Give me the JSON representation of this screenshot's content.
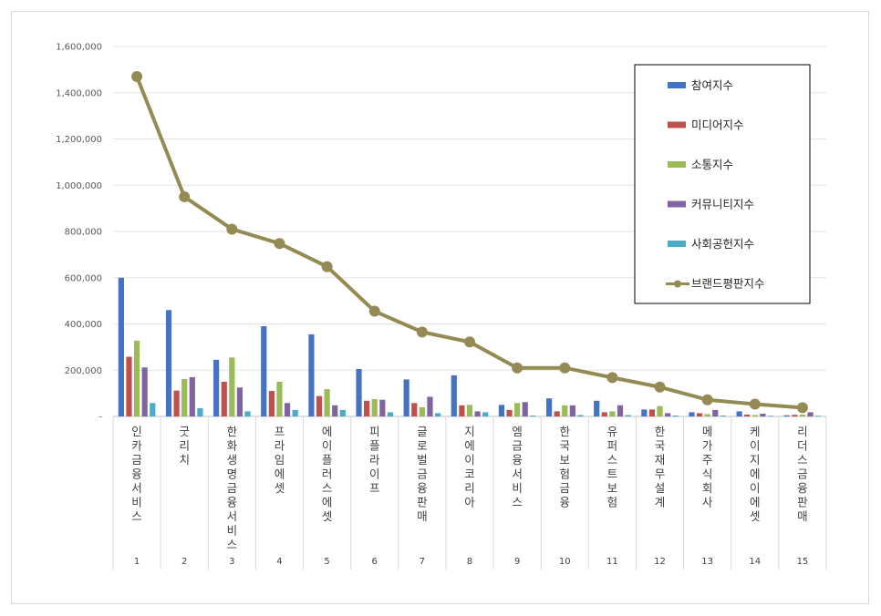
{
  "chart_data": {
    "type": "bar",
    "title": "",
    "xlabel": "",
    "ylabel": "",
    "ylim": [
      0,
      1600000
    ],
    "yticks": [
      "-",
      "200,000",
      "400,000",
      "600,000",
      "800,000",
      "1,000,000",
      "1,200,000",
      "1,400,000",
      "1,600,000"
    ],
    "grid": true,
    "legend_position": "top-right",
    "categories": [
      {
        "num": "1",
        "name": "인카금융서비스"
      },
      {
        "num": "2",
        "name": "굿리치"
      },
      {
        "num": "3",
        "name": "한화생명금융서비스"
      },
      {
        "num": "4",
        "name": "프라임에셋"
      },
      {
        "num": "5",
        "name": "에이플러스에셋"
      },
      {
        "num": "6",
        "name": "피플라이프"
      },
      {
        "num": "7",
        "name": "글로벌금융판매"
      },
      {
        "num": "8",
        "name": "지에이코리아"
      },
      {
        "num": "9",
        "name": "엠금융서비스"
      },
      {
        "num": "10",
        "name": "한국보험금융"
      },
      {
        "num": "11",
        "name": "유퍼스트보험"
      },
      {
        "num": "12",
        "name": "한국재무설계"
      },
      {
        "num": "13",
        "name": "메가주식회사"
      },
      {
        "num": "14",
        "name": "케이지에이에셋"
      },
      {
        "num": "15",
        "name": "리더스금융판매"
      }
    ],
    "series": [
      {
        "name": "참여지수",
        "kind": "bar",
        "color": "#4472c4",
        "values": [
          600000,
          460000,
          245000,
          390000,
          355000,
          205000,
          160000,
          178000,
          50000,
          78000,
          68000,
          30000,
          18000,
          22000,
          5000
        ]
      },
      {
        "name": "미디어지수",
        "kind": "bar",
        "color": "#c0504d",
        "values": [
          258000,
          112000,
          150000,
          110000,
          88000,
          68000,
          58000,
          48000,
          28000,
          22000,
          18000,
          30000,
          14000,
          8000,
          7000
        ]
      },
      {
        "name": "소통지수",
        "kind": "bar",
        "color": "#9bbb59",
        "values": [
          328000,
          162000,
          255000,
          150000,
          118000,
          75000,
          40000,
          50000,
          58000,
          48000,
          22000,
          45000,
          10000,
          6000,
          8000
        ]
      },
      {
        "name": "커뮤니티지수",
        "kind": "bar",
        "color": "#8064a2",
        "values": [
          212000,
          170000,
          125000,
          58000,
          48000,
          72000,
          85000,
          22000,
          62000,
          48000,
          48000,
          14000,
          28000,
          12000,
          18000
        ]
      },
      {
        "name": "사회공헌지수",
        "kind": "bar",
        "color": "#4bacc6",
        "values": [
          58000,
          36000,
          22000,
          28000,
          28000,
          18000,
          14000,
          18000,
          4000,
          6000,
          6000,
          4000,
          4000,
          3000,
          3000
        ]
      },
      {
        "name": "브랜드평판지수",
        "kind": "line",
        "color": "#948a54",
        "values": [
          1470000,
          950000,
          810000,
          748000,
          648000,
          455000,
          365000,
          322000,
          210000,
          210000,
          168000,
          127000,
          72000,
          53000,
          38000
        ]
      }
    ]
  }
}
